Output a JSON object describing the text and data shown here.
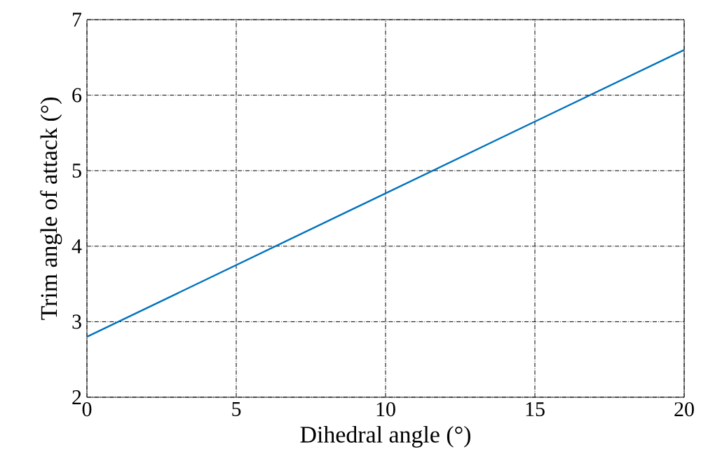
{
  "chart_data": {
    "type": "line",
    "xlabel": "Dihedral angle (°)",
    "ylabel": "Trim angle of attack (°)",
    "x": [
      0,
      20
    ],
    "series": [
      {
        "color": "#0072bd",
        "values": [
          2.8,
          6.6
        ]
      }
    ],
    "xlim": [
      0,
      20
    ],
    "ylim": [
      2,
      7
    ],
    "xticks": [
      0,
      5,
      10,
      15,
      20
    ],
    "yticks": [
      2,
      3,
      4,
      5,
      6,
      7
    ],
    "grid": true,
    "line_style": "solid",
    "marker": "none"
  }
}
